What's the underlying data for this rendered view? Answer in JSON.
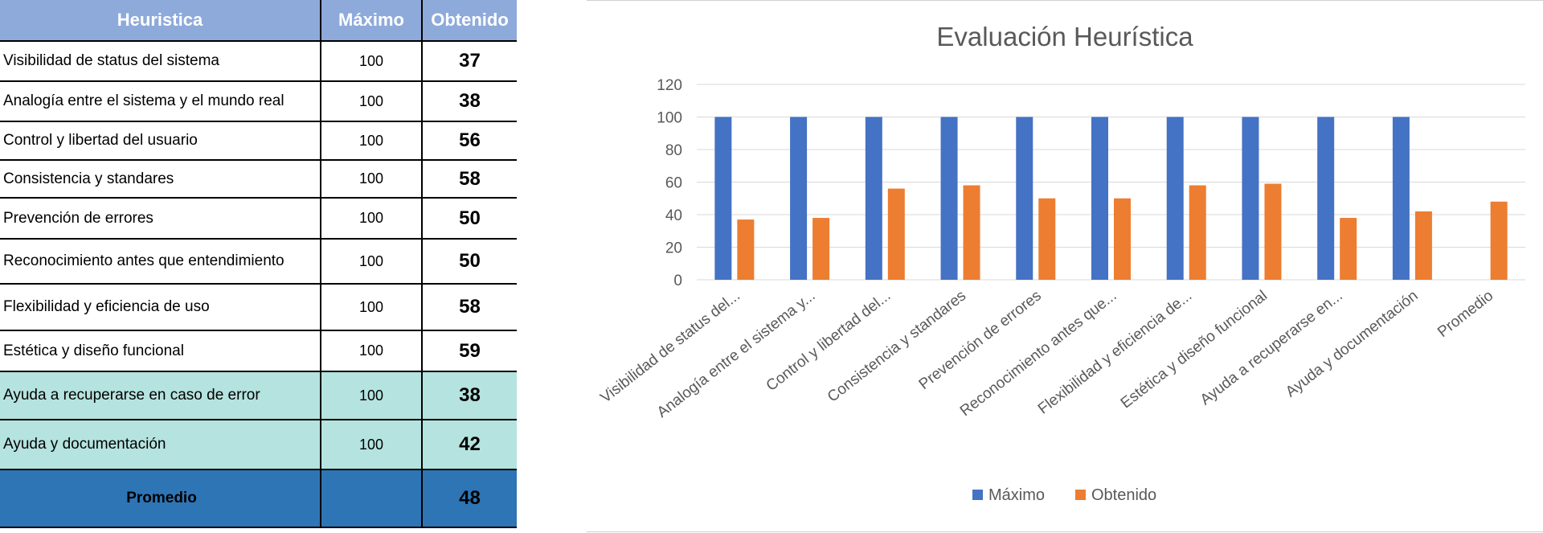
{
  "table": {
    "headers": {
      "name": "Heuristica",
      "max": "Máximo",
      "obtained": "Obtenido"
    },
    "rows": [
      {
        "name": "Visibilidad de status del sistema",
        "max": "100",
        "obtained": "37"
      },
      {
        "name": "Analogía entre el sistema y el mundo real",
        "max": "100",
        "obtained": "38"
      },
      {
        "name": "Control y libertad del usuario",
        "max": "100",
        "obtained": "56"
      },
      {
        "name": "Consistencia y standares",
        "max": "100",
        "obtained": "58"
      },
      {
        "name": "Prevención de errores",
        "max": "100",
        "obtained": "50"
      },
      {
        "name": "Reconocimiento antes que entendimiento",
        "max": "100",
        "obtained": "50"
      },
      {
        "name": "Flexibilidad y eficiencia de uso",
        "max": "100",
        "obtained": "58"
      },
      {
        "name": "Estética y diseño funcional",
        "max": "100",
        "obtained": "59"
      },
      {
        "name": "Ayuda a recuperarse en caso de error",
        "max": "100",
        "obtained": "38"
      },
      {
        "name": "Ayuda y documentación",
        "max": "100",
        "obtained": "42"
      }
    ],
    "average": {
      "name": "Promedio",
      "max": "",
      "obtained": "48"
    }
  },
  "colors": {
    "series_max": "#4472c4",
    "series_obtained": "#ed7d31",
    "header_bg": "#8eaadb",
    "teal_row_bg": "#b5e3df",
    "average_bg": "#2e75b6"
  },
  "chart_data": {
    "type": "bar",
    "title": "Evaluación Heurística",
    "categories": [
      "Visibilidad de status del...",
      "Analogía entre el sistema y...",
      "Control y libertad del...",
      "Consistencia y standares",
      "Prevención de errores",
      "Reconocimiento antes que...",
      "Flexibilidad y eficiencia de...",
      "Estética y diseño funcional",
      "Ayuda a recuperarse en...",
      "Ayuda y documentación",
      "Promedio"
    ],
    "series": [
      {
        "name": "Máximo",
        "values": [
          100,
          100,
          100,
          100,
          100,
          100,
          100,
          100,
          100,
          100,
          null
        ]
      },
      {
        "name": "Obtenido",
        "values": [
          37,
          38,
          56,
          58,
          50,
          50,
          58,
          59,
          38,
          42,
          48
        ]
      }
    ],
    "ylim": [
      0,
      120
    ],
    "yticks": [
      0,
      20,
      40,
      60,
      80,
      100,
      120
    ],
    "grid": true,
    "legend": "bottom"
  }
}
